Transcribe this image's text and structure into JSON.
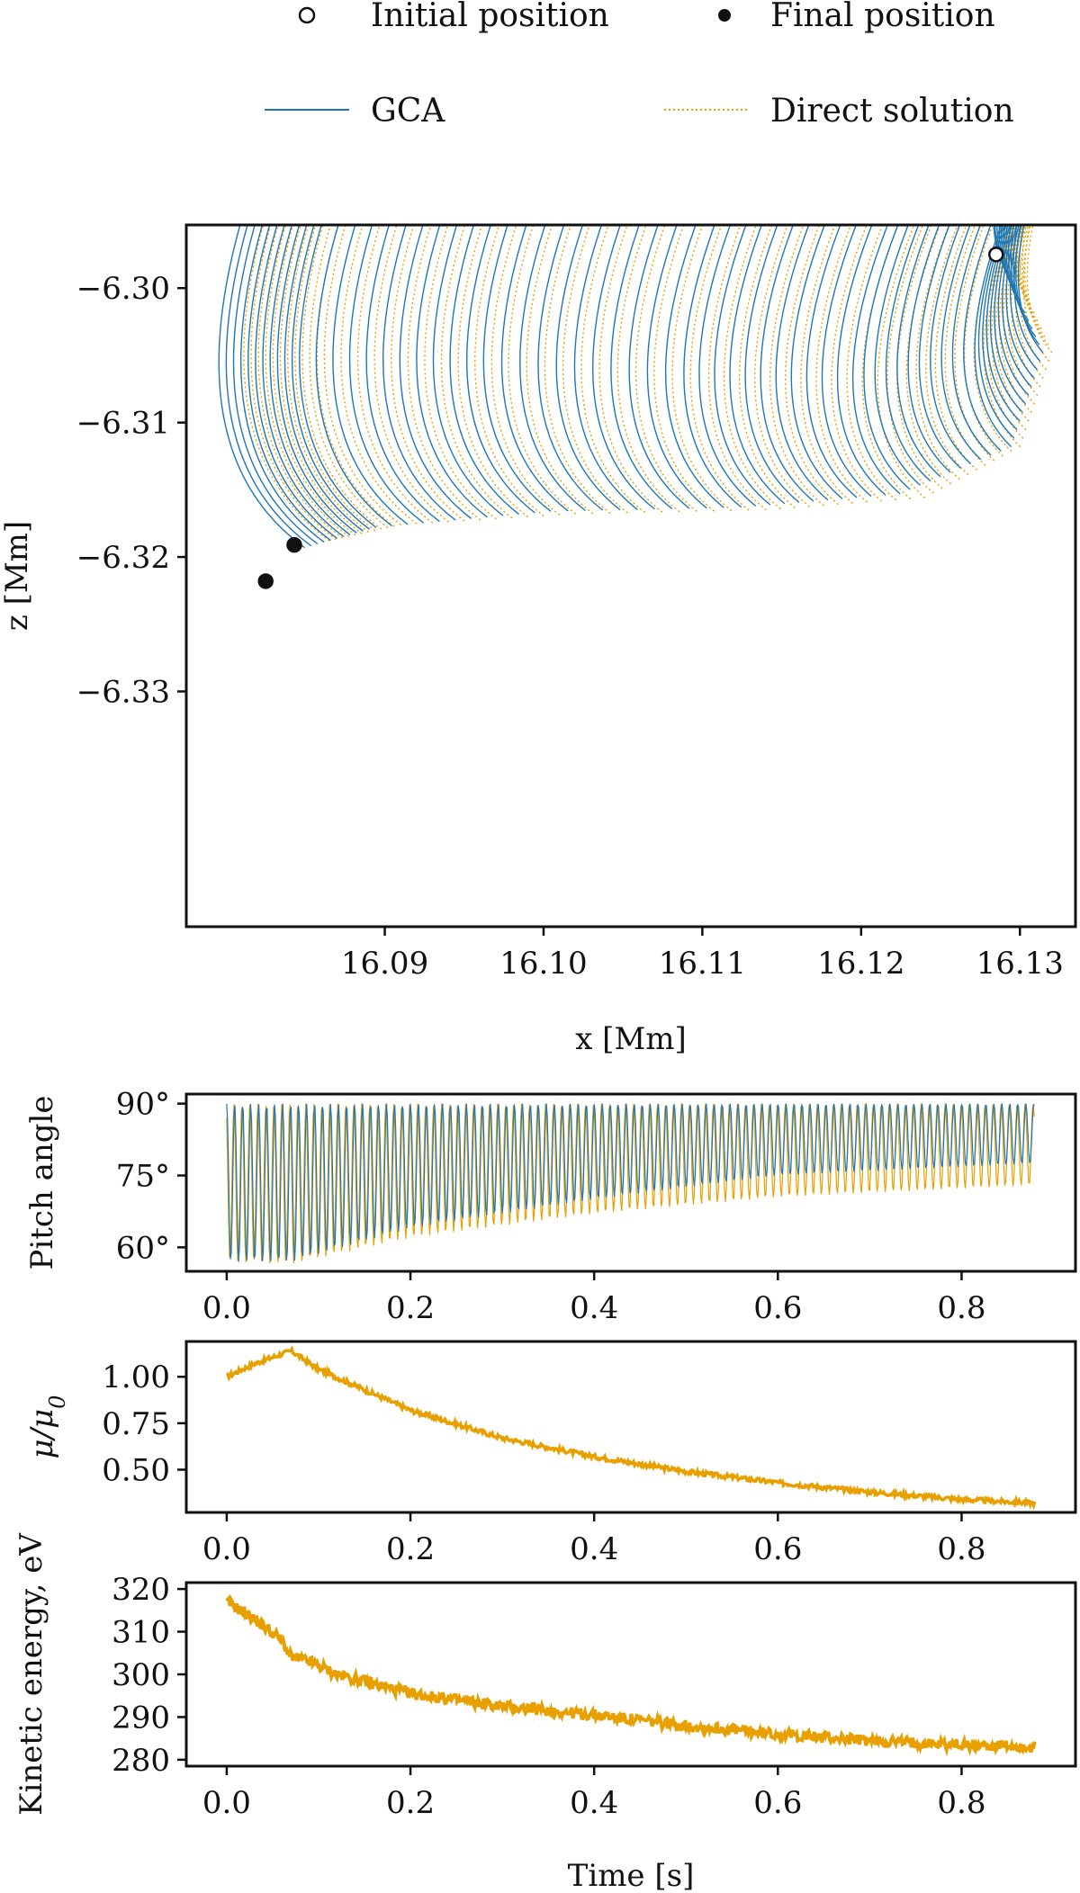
{
  "legend": {
    "initial_position": "Initial position",
    "final_position": "Final position",
    "gca": "GCA",
    "direct_solution": "Direct solution"
  },
  "colors": {
    "gca": "#1f77b4",
    "direct": "#e8a000",
    "axes": "#111111"
  },
  "chart_data": [
    {
      "id": "trajectory",
      "type": "line",
      "title": "",
      "xlabel": "x [Mm]",
      "ylabel": "z [Mm]",
      "xlim": [
        16.0775,
        16.1335
      ],
      "ylim": [
        -6.3475,
        -6.2953
      ],
      "xticks": [
        16.09,
        16.1,
        16.11,
        16.12,
        16.13
      ],
      "xtick_labels": [
        "16.09",
        "16.10",
        "16.11",
        "16.12",
        "16.13"
      ],
      "yticks": [
        -6.33,
        -6.32,
        -6.31,
        -6.3
      ],
      "ytick_labels": [
        "−6.33",
        "−6.32",
        "−6.31",
        "−6.30"
      ],
      "series": [
        {
          "name": "GCA",
          "style": "solid",
          "guiding_path": {
            "x": [
              16.1285,
              16.131,
              16.129,
              16.122,
              16.112,
              16.1,
              16.089,
              16.0845
            ],
            "y": [
              -6.2975,
              -6.304,
              -6.311,
              -6.3145,
              -6.3155,
              -6.3158,
              -6.317,
              -6.3185
            ]
          }
        },
        {
          "name": "Direct solution",
          "style": "dotted",
          "guiding_path": {
            "x": [
              16.1285,
              16.131,
              16.129,
              16.123,
              16.113,
              16.101,
              16.09,
              16.0855
            ],
            "y": [
              -6.2975,
              -6.304,
              -6.311,
              -6.3148,
              -6.3157,
              -6.316,
              -6.3168,
              -6.318
            ]
          }
        }
      ],
      "markers": [
        {
          "name": "Initial position",
          "x": 16.1285,
          "y": -6.2975,
          "filled": false
        },
        {
          "name": "Final position",
          "x": 16.0825,
          "y": -6.3218,
          "filled": true
        },
        {
          "name": "Final position",
          "x": 16.0843,
          "y": -6.3191,
          "filled": true
        }
      ]
    },
    {
      "id": "pitch",
      "type": "line",
      "xlabel": "",
      "ylabel": "Pitch angle",
      "xlim": [
        -0.044,
        0.924
      ],
      "ylim": [
        55,
        92
      ],
      "xticks": [
        0.0,
        0.2,
        0.4,
        0.6,
        0.8
      ],
      "xtick_labels": [
        "0.0",
        "0.2",
        "0.4",
        "0.6",
        "0.8"
      ],
      "yticks": [
        60,
        75,
        90
      ],
      "ytick_labels": [
        "60°",
        "75°",
        "90°"
      ],
      "series": [
        {
          "name": "GCA",
          "max": 90,
          "min_envelope": {
            "t": [
              0.0,
              0.07,
              0.2,
              0.4,
              0.6,
              0.88
            ],
            "v": [
              57,
              57,
              64,
              70,
              75,
              77.5
            ]
          }
        },
        {
          "name": "Direct solution",
          "max": 90,
          "min_envelope": {
            "t": [
              0.0,
              0.07,
              0.2,
              0.4,
              0.6,
              0.88
            ],
            "v": [
              57,
              56.5,
              62,
              67,
              70.5,
              73
            ]
          }
        }
      ]
    },
    {
      "id": "mu",
      "type": "line",
      "xlabel": "",
      "ylabel": "μ/μ₀",
      "xlim": [
        -0.044,
        0.924
      ],
      "ylim": [
        0.27,
        1.19
      ],
      "xticks": [
        0.0,
        0.2,
        0.4,
        0.6,
        0.8
      ],
      "xtick_labels": [
        "0.0",
        "0.2",
        "0.4",
        "0.6",
        "0.8"
      ],
      "yticks": [
        0.5,
        0.75,
        1.0
      ],
      "ytick_labels": [
        "0.50",
        "0.75",
        "1.00"
      ],
      "series": [
        {
          "name": "Direct solution",
          "x": [
            0.0,
            0.03,
            0.07,
            0.1,
            0.15,
            0.2,
            0.3,
            0.4,
            0.5,
            0.6,
            0.7,
            0.8,
            0.88
          ],
          "y": [
            1.0,
            1.07,
            1.14,
            1.04,
            0.93,
            0.82,
            0.67,
            0.57,
            0.49,
            0.43,
            0.38,
            0.34,
            0.32
          ]
        }
      ]
    },
    {
      "id": "energy",
      "type": "line",
      "xlabel": "Time [s]",
      "ylabel": "Kinetic energy, eV",
      "xlim": [
        -0.044,
        0.924
      ],
      "ylim": [
        278.5,
        321.5
      ],
      "xticks": [
        0.0,
        0.2,
        0.4,
        0.6,
        0.8
      ],
      "xtick_labels": [
        "0.0",
        "0.2",
        "0.4",
        "0.6",
        "0.8"
      ],
      "yticks": [
        280,
        290,
        300,
        310,
        320
      ],
      "ytick_labels": [
        "280",
        "290",
        "300",
        "310",
        "320"
      ],
      "series": [
        {
          "name": "Direct solution",
          "x": [
            0.0,
            0.03,
            0.06,
            0.07,
            0.09,
            0.12,
            0.2,
            0.3,
            0.4,
            0.5,
            0.6,
            0.7,
            0.8,
            0.88
          ],
          "y": [
            317,
            313,
            308,
            304,
            303,
            300,
            295.5,
            292.5,
            290.5,
            288,
            286,
            284.5,
            283.5,
            283
          ]
        }
      ]
    }
  ]
}
